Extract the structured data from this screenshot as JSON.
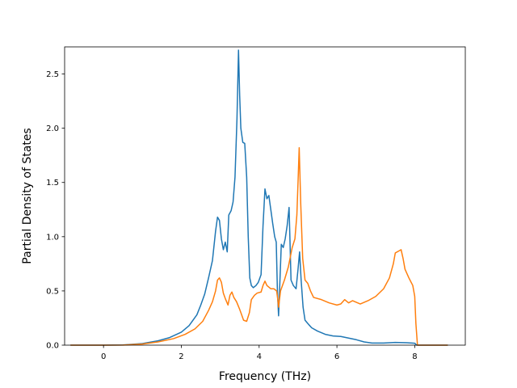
{
  "chart_data": {
    "type": "line",
    "xlabel": "Frequency (THz)",
    "ylabel": "Partial Density of States",
    "xlim": [
      -1.0,
      9.3
    ],
    "ylim": [
      0,
      2.75
    ],
    "xticks": [
      0,
      2,
      4,
      6,
      8
    ],
    "yticks": [
      0.0,
      0.5,
      1.0,
      1.5,
      2.0,
      2.5
    ],
    "xtick_labels": [
      "0",
      "2",
      "4",
      "6",
      "8"
    ],
    "ytick_labels": [
      "0.0",
      "0.5",
      "1.0",
      "1.5",
      "2.0",
      "2.5"
    ],
    "grid": false,
    "legend": "none",
    "series": [
      {
        "color": "#1f77b4",
        "points": [
          [
            -0.85,
            0.0
          ],
          [
            0.0,
            0.0
          ],
          [
            0.5,
            0.002
          ],
          [
            1.0,
            0.015
          ],
          [
            1.4,
            0.04
          ],
          [
            1.7,
            0.07
          ],
          [
            2.0,
            0.12
          ],
          [
            2.2,
            0.18
          ],
          [
            2.4,
            0.28
          ],
          [
            2.5,
            0.37
          ],
          [
            2.6,
            0.47
          ],
          [
            2.7,
            0.62
          ],
          [
            2.8,
            0.78
          ],
          [
            2.88,
            1.05
          ],
          [
            2.93,
            1.18
          ],
          [
            2.98,
            1.15
          ],
          [
            3.03,
            0.98
          ],
          [
            3.08,
            0.88
          ],
          [
            3.13,
            0.95
          ],
          [
            3.18,
            0.86
          ],
          [
            3.22,
            1.2
          ],
          [
            3.28,
            1.24
          ],
          [
            3.33,
            1.32
          ],
          [
            3.38,
            1.55
          ],
          [
            3.43,
            2.08
          ],
          [
            3.47,
            2.72
          ],
          [
            3.5,
            2.3
          ],
          [
            3.53,
            2.0
          ],
          [
            3.58,
            1.87
          ],
          [
            3.63,
            1.86
          ],
          [
            3.68,
            1.55
          ],
          [
            3.72,
            1.0
          ],
          [
            3.76,
            0.62
          ],
          [
            3.8,
            0.55
          ],
          [
            3.85,
            0.53
          ],
          [
            3.92,
            0.55
          ],
          [
            3.98,
            0.58
          ],
          [
            4.05,
            0.65
          ],
          [
            4.1,
            1.1
          ],
          [
            4.15,
            1.44
          ],
          [
            4.2,
            1.35
          ],
          [
            4.25,
            1.38
          ],
          [
            4.3,
            1.25
          ],
          [
            4.35,
            1.12
          ],
          [
            4.4,
            1.0
          ],
          [
            4.44,
            0.95
          ],
          [
            4.47,
            0.5
          ],
          [
            4.5,
            0.27
          ],
          [
            4.53,
            0.55
          ],
          [
            4.57,
            0.93
          ],
          [
            4.62,
            0.9
          ],
          [
            4.67,
            0.98
          ],
          [
            4.72,
            1.1
          ],
          [
            4.77,
            1.27
          ],
          [
            4.82,
            0.6
          ],
          [
            4.88,
            0.55
          ],
          [
            4.95,
            0.52
          ],
          [
            5.0,
            0.7
          ],
          [
            5.04,
            0.86
          ],
          [
            5.08,
            0.6
          ],
          [
            5.13,
            0.35
          ],
          [
            5.18,
            0.23
          ],
          [
            5.25,
            0.2
          ],
          [
            5.35,
            0.16
          ],
          [
            5.5,
            0.13
          ],
          [
            5.7,
            0.1
          ],
          [
            5.9,
            0.085
          ],
          [
            6.1,
            0.08
          ],
          [
            6.3,
            0.065
          ],
          [
            6.5,
            0.05
          ],
          [
            6.7,
            0.03
          ],
          [
            6.9,
            0.02
          ],
          [
            7.2,
            0.02
          ],
          [
            7.5,
            0.025
          ],
          [
            7.8,
            0.022
          ],
          [
            8.0,
            0.018
          ],
          [
            8.05,
            0.0
          ],
          [
            8.85,
            0.0
          ]
        ]
      },
      {
        "color": "#ff7f0e",
        "points": [
          [
            -0.85,
            0.0
          ],
          [
            0.0,
            0.0
          ],
          [
            0.5,
            0.001
          ],
          [
            1.0,
            0.01
          ],
          [
            1.4,
            0.03
          ],
          [
            1.8,
            0.06
          ],
          [
            2.1,
            0.1
          ],
          [
            2.35,
            0.15
          ],
          [
            2.55,
            0.22
          ],
          [
            2.7,
            0.32
          ],
          [
            2.8,
            0.4
          ],
          [
            2.88,
            0.5
          ],
          [
            2.93,
            0.6
          ],
          [
            2.98,
            0.62
          ],
          [
            3.03,
            0.58
          ],
          [
            3.08,
            0.48
          ],
          [
            3.13,
            0.43
          ],
          [
            3.2,
            0.37
          ],
          [
            3.25,
            0.46
          ],
          [
            3.3,
            0.49
          ],
          [
            3.35,
            0.44
          ],
          [
            3.42,
            0.4
          ],
          [
            3.5,
            0.33
          ],
          [
            3.55,
            0.28
          ],
          [
            3.6,
            0.23
          ],
          [
            3.68,
            0.22
          ],
          [
            3.75,
            0.3
          ],
          [
            3.8,
            0.42
          ],
          [
            3.88,
            0.46
          ],
          [
            3.95,
            0.48
          ],
          [
            4.05,
            0.49
          ],
          [
            4.1,
            0.55
          ],
          [
            4.15,
            0.59
          ],
          [
            4.2,
            0.55
          ],
          [
            4.3,
            0.52
          ],
          [
            4.38,
            0.52
          ],
          [
            4.45,
            0.5
          ],
          [
            4.48,
            0.42
          ],
          [
            4.5,
            0.35
          ],
          [
            4.55,
            0.5
          ],
          [
            4.65,
            0.6
          ],
          [
            4.75,
            0.72
          ],
          [
            4.85,
            0.9
          ],
          [
            4.92,
            0.98
          ],
          [
            4.97,
            1.2
          ],
          [
            5.0,
            1.5
          ],
          [
            5.03,
            1.82
          ],
          [
            5.07,
            1.3
          ],
          [
            5.12,
            0.8
          ],
          [
            5.18,
            0.6
          ],
          [
            5.25,
            0.57
          ],
          [
            5.32,
            0.5
          ],
          [
            5.4,
            0.44
          ],
          [
            5.6,
            0.42
          ],
          [
            5.8,
            0.39
          ],
          [
            6.0,
            0.37
          ],
          [
            6.1,
            0.38
          ],
          [
            6.2,
            0.42
          ],
          [
            6.3,
            0.39
          ],
          [
            6.4,
            0.41
          ],
          [
            6.6,
            0.38
          ],
          [
            6.8,
            0.41
          ],
          [
            7.0,
            0.45
          ],
          [
            7.2,
            0.52
          ],
          [
            7.35,
            0.62
          ],
          [
            7.45,
            0.75
          ],
          [
            7.5,
            0.85
          ],
          [
            7.6,
            0.87
          ],
          [
            7.65,
            0.88
          ],
          [
            7.7,
            0.8
          ],
          [
            7.75,
            0.7
          ],
          [
            7.85,
            0.62
          ],
          [
            7.95,
            0.55
          ],
          [
            8.0,
            0.45
          ],
          [
            8.03,
            0.2
          ],
          [
            8.07,
            0.0
          ],
          [
            8.85,
            0.0
          ]
        ]
      }
    ]
  }
}
